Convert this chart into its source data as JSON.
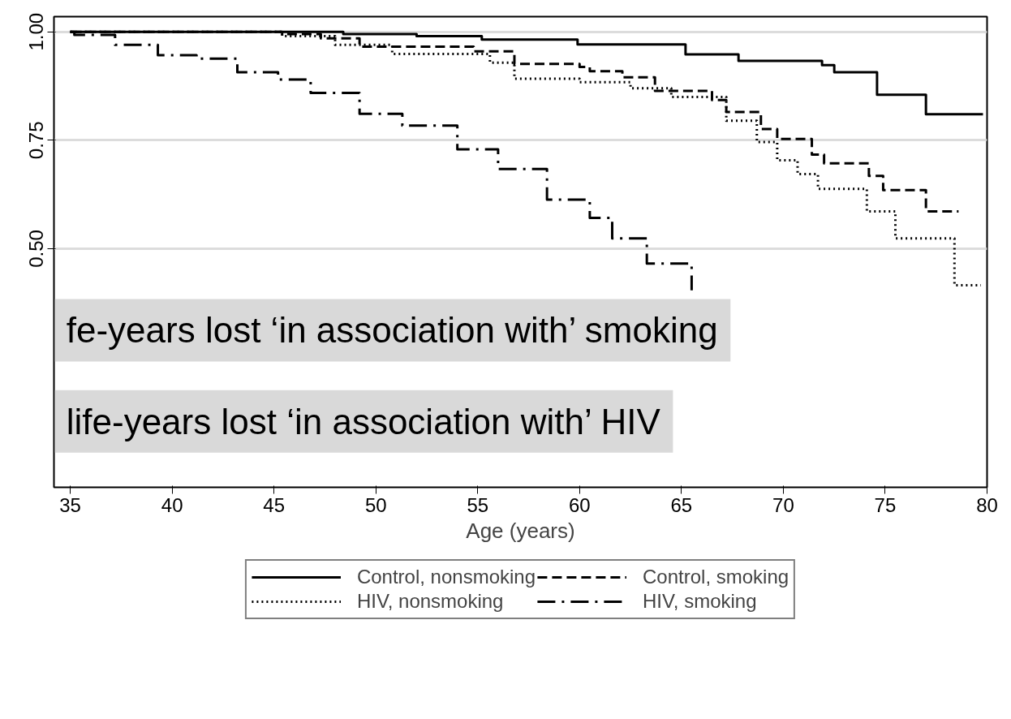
{
  "chart_data": {
    "type": "step",
    "xlabel": "Age (years)",
    "xlim": [
      34.2,
      80
    ],
    "ylim": [
      -0.05,
      1.035
    ],
    "xticks": [
      35,
      40,
      45,
      50,
      55,
      60,
      65,
      70,
      75,
      80
    ],
    "yticks": [
      {
        "value": 0.5,
        "label": "0.50"
      },
      {
        "value": 0.75,
        "label": "0.75"
      },
      {
        "value": 1.0,
        "label": "1.00"
      }
    ],
    "grid": "y",
    "legend": "bottom",
    "annotations": [
      "fe-years lost ‘in association with’ smoking",
      "life-years lost ‘in association with’ HIV"
    ],
    "series": [
      {
        "name": "Control, nonsmoking",
        "color": "#000000",
        "line_style": "solid",
        "x": [
          35,
          48.4,
          52,
          55.2,
          59.9,
          65.2,
          67.8,
          71.9,
          72.5,
          74.6,
          77.0,
          79.8
        ],
        "values": [
          1,
          0.995,
          0.99,
          0.982,
          0.971,
          0.948,
          0.933,
          0.923,
          0.907,
          0.855,
          0.81,
          0.81
        ]
      },
      {
        "name": "Control, smoking",
        "color": "#000000",
        "line_style": "dashed",
        "x": [
          35,
          45.4,
          47.3,
          49.2,
          54.8,
          56.8,
          60.0,
          60.5,
          62.1,
          63.7,
          66.5,
          67.2,
          68.9,
          69.7,
          71.4,
          72.0,
          74.2,
          74.9,
          77.0,
          78.6
        ],
        "values": [
          1,
          0.995,
          0.985,
          0.966,
          0.955,
          0.926,
          0.919,
          0.909,
          0.895,
          0.864,
          0.843,
          0.815,
          0.776,
          0.753,
          0.717,
          0.697,
          0.668,
          0.635,
          0.586,
          0.586
        ]
      },
      {
        "name": "HIV, nonsmoking",
        "color": "#000000",
        "line_style": "dotted",
        "x": [
          35,
          45.4,
          48,
          50.8,
          55.6,
          56.8,
          60.0,
          62.5,
          64.5,
          67.2,
          68.7,
          69.7,
          70.7,
          71.7,
          74.1,
          75.5,
          78.4,
          79.7
        ],
        "values": [
          1,
          0.99,
          0.97,
          0.949,
          0.929,
          0.892,
          0.884,
          0.87,
          0.85,
          0.795,
          0.746,
          0.704,
          0.672,
          0.638,
          0.586,
          0.524,
          0.416,
          0.416
        ]
      },
      {
        "name": "HIV, smoking",
        "color": "#000000",
        "line_style": "dashdot",
        "x": [
          35,
          35.2,
          37.2,
          39.3,
          41.2,
          43.2,
          45.2,
          46.8,
          49.2,
          51.3,
          54.0,
          56.0,
          58.4,
          60.5,
          61.6,
          63.3,
          65.5
        ],
        "values": [
          1,
          0.993,
          0.97,
          0.946,
          0.938,
          0.907,
          0.89,
          0.859,
          0.811,
          0.784,
          0.729,
          0.684,
          0.613,
          0.571,
          0.524,
          0.466,
          0.404
        ]
      }
    ]
  }
}
